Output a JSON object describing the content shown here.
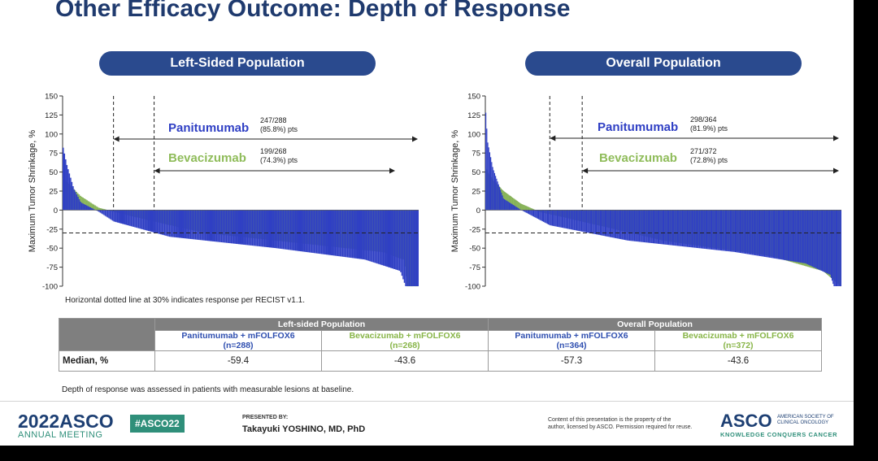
{
  "title": "Other Efficacy Outcome: Depth of Response",
  "colors": {
    "panitumumab": "#2f3fc4",
    "bevacizumab": "#8fbc5a",
    "title": "#1f3a6e",
    "pill": "#2a4a8e"
  },
  "chart_data": [
    {
      "type": "bar",
      "subtype": "waterfall",
      "title": "Left-Sided Population",
      "ylabel": "Maximum Tumor Shrinkage, %",
      "ylim": [
        -100,
        150
      ],
      "yticks": [
        "150",
        "125",
        "100",
        "75",
        "50",
        "25",
        "0",
        "-25",
        "-50",
        "-75",
        "-100"
      ],
      "reference_line": -30,
      "series": [
        {
          "name": "Panitumumab",
          "label": "Panitumumab",
          "count": "247/288",
          "pct": "(85.8%) pts",
          "n": 288,
          "profile": [
            [
              0,
              82
            ],
            [
              0.01,
              60
            ],
            [
              0.03,
              28
            ],
            [
              0.05,
              10
            ],
            [
              0.1,
              -2
            ],
            [
              0.143,
              -15
            ],
            [
              0.3,
              -35
            ],
            [
              0.6,
              -50
            ],
            [
              0.85,
              -65
            ],
            [
              0.95,
              -80
            ],
            [
              0.965,
              -100
            ],
            [
              1,
              -100
            ]
          ]
        },
        {
          "name": "Bevacizumab",
          "label": "Bevacizumab",
          "count": "199/268",
          "pct": "(74.3%) pts",
          "n": 268,
          "profile": [
            [
              0,
              42
            ],
            [
              0.02,
              32
            ],
            [
              0.05,
              18
            ],
            [
              0.1,
              3
            ],
            [
              0.15,
              -3
            ],
            [
              0.257,
              -15
            ],
            [
              0.4,
              -30
            ],
            [
              0.7,
              -45
            ],
            [
              0.9,
              -55
            ],
            [
              0.96,
              -65
            ],
            [
              0.97,
              -100
            ],
            [
              1,
              -100
            ]
          ]
        }
      ]
    },
    {
      "type": "bar",
      "subtype": "waterfall",
      "title": "Overall Population",
      "ylabel": "Maximum Tumor Shrinkage, %",
      "ylim": [
        -100,
        150
      ],
      "yticks": [
        "150",
        "125",
        "100",
        "75",
        "50",
        "25",
        "0",
        "-25",
        "-50",
        "-75",
        "-100"
      ],
      "reference_line": -30,
      "series": [
        {
          "name": "Panitumumab",
          "label": "Panitumumab",
          "count": "298/364",
          "pct": "(81.9%) pts",
          "n": 364,
          "profile": [
            [
              0,
              128
            ],
            [
              0.005,
              90
            ],
            [
              0.02,
              55
            ],
            [
              0.05,
              15
            ],
            [
              0.1,
              0
            ],
            [
              0.181,
              -20
            ],
            [
              0.4,
              -40
            ],
            [
              0.7,
              -55
            ],
            [
              0.9,
              -70
            ],
            [
              0.97,
              -85
            ],
            [
              0.98,
              -100
            ],
            [
              1,
              -100
            ]
          ]
        },
        {
          "name": "Bevacizumab",
          "label": "Bevacizumab",
          "count": "271/372",
          "pct": "(72.8%) pts",
          "n": 372,
          "profile": [
            [
              0,
              55
            ],
            [
              0.02,
              40
            ],
            [
              0.05,
              25
            ],
            [
              0.1,
              8
            ],
            [
              0.15,
              -2
            ],
            [
              0.272,
              -15
            ],
            [
              0.5,
              -40
            ],
            [
              0.8,
              -60
            ],
            [
              0.95,
              -80
            ],
            [
              1,
              -100
            ]
          ]
        }
      ]
    }
  ],
  "footnote": "Horizontal dotted line at 30% indicates response per RECIST v1.1.",
  "table": {
    "groups": [
      "Left-sided Population",
      "Overall Population"
    ],
    "columns": [
      {
        "line1": "Panitumumab + mFOLFOX6",
        "line2": "(n=288)",
        "arm": "pan"
      },
      {
        "line1": "Bevacizumab + mFOLFOX6",
        "line2": "(n=268)",
        "arm": "bev"
      },
      {
        "line1": "Panitumumab + mFOLFOX6",
        "line2": "(n=364)",
        "arm": "pan"
      },
      {
        "line1": "Bevacizumab + mFOLFOX6",
        "line2": "(n=372)",
        "arm": "bev"
      }
    ],
    "row_label": "Median, %",
    "values": [
      "-59.4",
      "-43.6",
      "-57.3",
      "-43.6"
    ]
  },
  "depth_note": "Depth of response was assessed in patients with measurable lesions at baseline.",
  "footer": {
    "year": "2022",
    "org": "ASCO",
    "meeting": "ANNUAL MEETING",
    "hashtag": "#ASCO22",
    "presented_by": "PRESENTED BY:",
    "presenter": "Takayuki YOSHINO, MD, PhD",
    "copyright_line1": "Content of this presentation is the property of the",
    "copyright_line2": "author, licensed by ASCO. Permission required for reuse.",
    "logo": "ASCO",
    "logo_sub1": "AMERICAN SOCIETY OF",
    "logo_sub2": "CLINICAL ONCOLOGY",
    "tagline": "KNOWLEDGE CONQUERS CANCER"
  }
}
